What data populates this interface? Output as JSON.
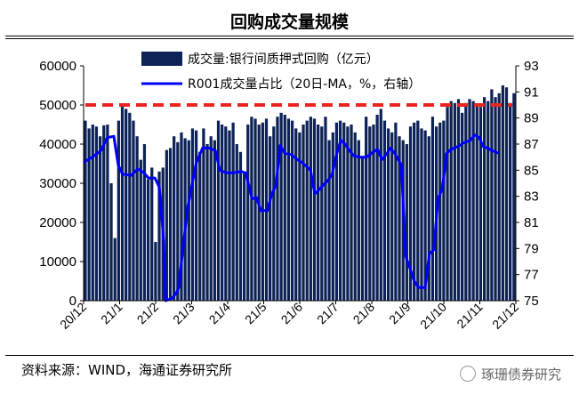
{
  "header": {
    "title": "回购成交量规模"
  },
  "footer": {
    "source": "资料来源：WIND，海通证券研究所",
    "watermark": "琢珊债券研究"
  },
  "colors": {
    "bar": "#0d2257",
    "line": "#0000ff",
    "ref": "#e8261f"
  },
  "chart_data": {
    "type": "bar+line",
    "title": "回购成交量规模",
    "x_ticks": [
      "20/12",
      "21/1",
      "21/2",
      "21/3",
      "21/4",
      "21/5",
      "21/6",
      "21/7",
      "21/8",
      "21/9",
      "21/10",
      "21/11",
      "21/12"
    ],
    "y_left": {
      "min": 0,
      "max": 60000,
      "ticks": [
        "0",
        "10000",
        "20000",
        "30000",
        "40000",
        "50000",
        "60000"
      ]
    },
    "y_right": {
      "min": 75,
      "max": 93,
      "ticks": [
        "75",
        "77",
        "79",
        "81",
        "83",
        "85",
        "87",
        "89",
        "91",
        "93"
      ]
    },
    "reference_line": {
      "axis": "left",
      "value": 50000
    },
    "legend": [
      {
        "name": "成交量:银行间质押式回购（亿元）",
        "kind": "bar"
      },
      {
        "name": "R001成交量占比（20日-MA，%，右轴）",
        "kind": "line"
      }
    ],
    "series_bar": {
      "name": "成交量:银行间质押式回购（亿元）",
      "values": [
        46000,
        44000,
        45000,
        44500,
        42000,
        44800,
        45000,
        30000,
        16000,
        46000,
        50000,
        49000,
        48000,
        46000,
        42000,
        36000,
        40000,
        31000,
        34000,
        15000,
        33000,
        34000,
        38500,
        39000,
        42000,
        40500,
        43000,
        41500,
        41000,
        44000,
        43500,
        38000,
        44000,
        40000,
        42000,
        41000,
        46000,
        45000,
        44500,
        43500,
        45500,
        40000,
        38000,
        33000,
        45000,
        47000,
        46500,
        45000,
        45500,
        46500,
        42000,
        44500,
        47000,
        48000,
        47500,
        46500,
        46000,
        44000,
        43000,
        45000,
        46000,
        47000,
        46500,
        45000,
        44500,
        47000,
        41000,
        43000,
        45500,
        46000,
        45500,
        44500,
        45000,
        43000,
        41000,
        37000,
        47000,
        44500,
        45000,
        47500,
        49000,
        46000,
        44000,
        43000,
        45500,
        42000,
        41000,
        40000,
        44500,
        45500,
        46000,
        44000,
        43500,
        42000,
        47000,
        44500,
        45500,
        46000,
        49500,
        51000,
        50500,
        51500,
        48000,
        50500,
        51500,
        51000,
        50000,
        49500,
        52000,
        51000,
        54000,
        52000,
        53000,
        55000,
        54500,
        50500,
        53000
      ]
    },
    "series_line": {
      "name": "R001成交量占比（20日-MA，%，右轴）",
      "points": [
        [
          0,
          85.6
        ],
        [
          0.02,
          86.0
        ],
        [
          0.04,
          86.5
        ],
        [
          0.055,
          87.5
        ],
        [
          0.07,
          87.6
        ],
        [
          0.08,
          85.4
        ],
        [
          0.09,
          84.7
        ],
        [
          0.11,
          84.6
        ],
        [
          0.125,
          85.1
        ],
        [
          0.14,
          84.8
        ],
        [
          0.15,
          84.4
        ],
        [
          0.165,
          84.4
        ],
        [
          0.175,
          83.7
        ],
        [
          0.185,
          79.7
        ],
        [
          0.19,
          75.0
        ],
        [
          0.205,
          75.2
        ],
        [
          0.215,
          75.6
        ],
        [
          0.22,
          76.0
        ],
        [
          0.24,
          82.0
        ],
        [
          0.26,
          85.5
        ],
        [
          0.275,
          86.7
        ],
        [
          0.29,
          86.7
        ],
        [
          0.305,
          86.5
        ],
        [
          0.315,
          85.0
        ],
        [
          0.33,
          84.8
        ],
        [
          0.345,
          84.8
        ],
        [
          0.365,
          84.9
        ],
        [
          0.375,
          84.8
        ],
        [
          0.39,
          82.8
        ],
        [
          0.4,
          82.9
        ],
        [
          0.41,
          81.9
        ],
        [
          0.425,
          81.9
        ],
        [
          0.435,
          83.1
        ],
        [
          0.445,
          83.9
        ],
        [
          0.455,
          86.9
        ],
        [
          0.465,
          86.3
        ],
        [
          0.48,
          86.2
        ],
        [
          0.495,
          85.8
        ],
        [
          0.505,
          85.6
        ],
        [
          0.515,
          85.3
        ],
        [
          0.525,
          85.0
        ],
        [
          0.535,
          83.2
        ],
        [
          0.545,
          83.5
        ],
        [
          0.555,
          83.9
        ],
        [
          0.565,
          84.2
        ],
        [
          0.575,
          84.7
        ],
        [
          0.585,
          86.2
        ],
        [
          0.595,
          87.3
        ],
        [
          0.605,
          87.0
        ],
        [
          0.615,
          86.5
        ],
        [
          0.625,
          86.1
        ],
        [
          0.64,
          86.0
        ],
        [
          0.655,
          86.0
        ],
        [
          0.67,
          86.4
        ],
        [
          0.68,
          86.6
        ],
        [
          0.69,
          85.8
        ],
        [
          0.7,
          86.2
        ],
        [
          0.71,
          86.7
        ],
        [
          0.72,
          86.3
        ],
        [
          0.735,
          85.4
        ],
        [
          0.745,
          78.4
        ],
        [
          0.755,
          77.5
        ],
        [
          0.765,
          76.5
        ],
        [
          0.775,
          76.0
        ],
        [
          0.79,
          76.0
        ],
        [
          0.8,
          78.6
        ],
        [
          0.81,
          78.9
        ],
        [
          0.82,
          82.8
        ],
        [
          0.83,
          83.6
        ],
        [
          0.84,
          86.3
        ],
        [
          0.85,
          86.6
        ],
        [
          0.865,
          86.8
        ],
        [
          0.88,
          87.1
        ],
        [
          0.895,
          87.3
        ],
        [
          0.905,
          87.7
        ],
        [
          0.915,
          87.5
        ],
        [
          0.925,
          86.8
        ],
        [
          0.935,
          86.7
        ],
        [
          0.945,
          86.5
        ],
        [
          0.96,
          86.3
        ]
      ]
    },
    "xlabel": "",
    "ylabel": "",
    "ylabel_right": ""
  }
}
